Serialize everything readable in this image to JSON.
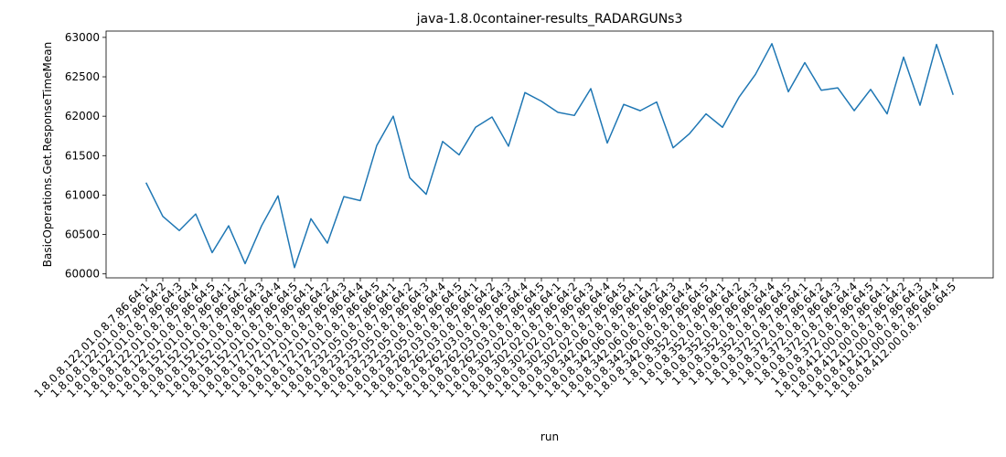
{
  "chart_data": {
    "type": "line",
    "title": "java-1.8.0container-results_RADARGUNs3",
    "xlabel": "run",
    "ylabel": "BasicOperations.Get.ResponseTimeMean",
    "ylim": [
      59950,
      63080
    ],
    "yticks": [
      60000,
      60500,
      61000,
      61500,
      62000,
      62500,
      63000
    ],
    "grid": false,
    "color": "#1f77b4",
    "categories": [
      "1.8.0.8.122.01.0.8.7.86.64:1",
      "1.8.0.8.122.01.0.8.7.86.64:2",
      "1.8.0.8.122.01.0.8.7.86.64:3",
      "1.8.0.8.122.01.0.8.7.86.64:4",
      "1.8.0.8.122.01.0.8.7.86.64:5",
      "1.8.0.8.152.01.0.8.7.86.64:1",
      "1.8.0.8.152.01.0.8.7.86.64:2",
      "1.8.0.8.152.01.0.8.7.86.64:3",
      "1.8.0.8.152.01.0.8.7.86.64:4",
      "1.8.0.8.152.01.0.8.7.86.64:5",
      "1.8.0.8.172.01.0.8.7.86.64:1",
      "1.8.0.8.172.01.0.8.7.86.64:2",
      "1.8.0.8.172.01.0.8.7.86.64:3",
      "1.8.0.8.172.01.0.8.7.86.64:4",
      "1.8.0.8.172.01.0.8.7.86.64:5",
      "1.8.0.8.232.05.0.8.7.86.64:1",
      "1.8.0.8.232.05.0.8.7.86.64:2",
      "1.8.0.8.232.05.0.8.7.86.64:3",
      "1.8.0.8.232.05.0.8.7.86.64:4",
      "1.8.0.8.232.05.0.8.7.86.64:5",
      "1.8.0.8.262.03.0.8.7.86.64:1",
      "1.8.0.8.262.03.0.8.7.86.64:2",
      "1.8.0.8.262.03.0.8.7.86.64:3",
      "1.8.0.8.262.03.0.8.7.86.64:4",
      "1.8.0.8.262.03.0.8.7.86.64:5",
      "1.8.0.8.302.02.0.8.7.86.64:1",
      "1.8.0.8.302.02.0.8.7.86.64:2",
      "1.8.0.8.302.02.0.8.7.86.64:3",
      "1.8.0.8.302.02.0.8.7.86.64:4",
      "1.8.0.8.302.02.0.8.7.86.64:5",
      "1.8.0.8.342.06.0.8.7.86.64:1",
      "1.8.0.8.342.06.0.8.7.86.64:2",
      "1.8.0.8.342.06.0.8.7.86.64:3",
      "1.8.0.8.342.06.0.8.7.86.64:4",
      "1.8.0.8.342.06.0.8.7.86.64:5",
      "1.8.0.8.352.0.8.7.86.64:1",
      "1.8.0.8.352.0.8.7.86.64:2",
      "1.8.0.8.352.0.8.7.86.64:3",
      "1.8.0.8.352.0.8.7.86.64:4",
      "1.8.0.8.352.0.8.7.86.64:5",
      "1.8.0.8.372.0.8.7.86.64:1",
      "1.8.0.8.372.0.8.7.86.64:2",
      "1.8.0.8.372.0.8.7.86.64:3",
      "1.8.0.8.372.0.8.7.86.64:4",
      "1.8.0.8.372.0.8.7.86.64:5",
      "1.8.0.8.412.00.0.8.7.86.64:1",
      "1.8.0.8.412.00.0.8.7.86.64:2",
      "1.8.0.8.412.00.0.8.7.86.64:3",
      "1.8.0.8.412.00.0.8.7.86.64:4",
      "1.8.0.8.412.00.0.8.7.86.64:5"
    ],
    "values": [
      61150,
      60730,
      60550,
      60760,
      60270,
      60610,
      60130,
      60610,
      60990,
      60080,
      60700,
      60390,
      60980,
      60930,
      61630,
      62000,
      61220,
      61010,
      61680,
      61510,
      61860,
      61990,
      61620,
      62300,
      62190,
      62050,
      62010,
      62350,
      61660,
      62150,
      62070,
      62180,
      61600,
      61780,
      62030,
      61860,
      62240,
      62530,
      62920,
      62310,
      62680,
      62330,
      62360,
      62070,
      62340,
      62030,
      62750,
      62140,
      62910,
      62280
    ]
  }
}
